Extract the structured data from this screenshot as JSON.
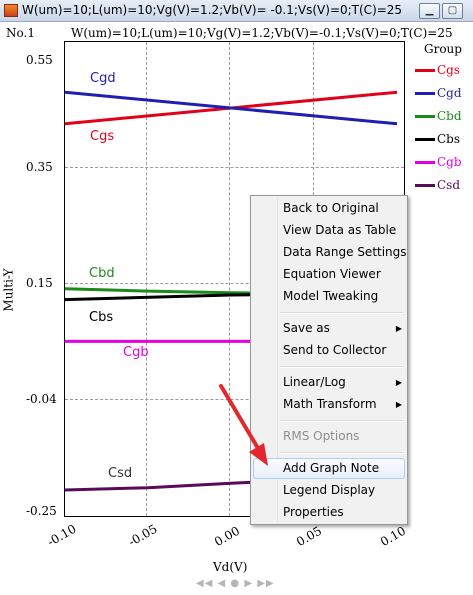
{
  "window": {
    "title": "W(um)=10;L(um)=10;Vg(V)=1.2;Vb(V)= -0.1;Vs(V)=0;T(C)=25",
    "minimize_symbol": "▁",
    "maximize_symbol": "▢",
    "close_symbol": "✕"
  },
  "graph": {
    "number": "No.1",
    "title": "W(um)=10;L(um)=10;Vg(V)=1.2;Vb(V)=-0.1;Vs(V)=0;T(C)=25",
    "ylabel": "Multi-Y",
    "xlabel": "Vd(V)",
    "pager": "◀◀ ◀ ● ▶ ▶▶"
  },
  "chart_data": {
    "type": "line",
    "x": [
      -0.1,
      0.1
    ],
    "xticks": [
      "-0.10",
      "-0.05",
      "0.00",
      "0.05",
      "0.10"
    ],
    "yticks": [
      "0.55",
      "0.35",
      "0.15",
      "-0.04",
      "-0.25"
    ],
    "xlim": [
      -0.1,
      0.1
    ],
    "ylim": [
      -0.25,
      0.55
    ],
    "grid": true,
    "legend_title": "Group",
    "legend_position": "right",
    "series": [
      {
        "name": "Cgs",
        "color": "#e3001b",
        "x": [
          -0.1,
          0.1
        ],
        "values": [
          0.437,
          0.493
        ]
      },
      {
        "name": "Cgd",
        "color": "#1f1fb0",
        "x": [
          -0.1,
          0.1
        ],
        "values": [
          0.493,
          0.437
        ]
      },
      {
        "name": "Cbd",
        "color": "#1a8a1a",
        "x": [
          -0.1,
          -0.05,
          0.0,
          0.03
        ],
        "values": [
          0.145,
          0.141,
          0.138,
          0.137
        ]
      },
      {
        "name": "Cbs",
        "color": "#000000",
        "x": [
          -0.1,
          0.0,
          0.03
        ],
        "values": [
          0.126,
          0.134,
          0.135
        ]
      },
      {
        "name": "Cgb",
        "color": "#e300e3",
        "x": [
          -0.1,
          0.03
        ],
        "values": [
          0.052,
          0.052
        ]
      },
      {
        "name": "Csd",
        "color": "#5a0a5a",
        "x": [
          -0.1,
          -0.05,
          0.0,
          0.03
        ],
        "values": [
          -0.211,
          -0.207,
          -0.199,
          -0.195
        ]
      }
    ]
  },
  "context_menu": {
    "items": [
      {
        "label": "Back to Original"
      },
      {
        "label": "View Data as Table"
      },
      {
        "label": "Data Range Settings"
      },
      {
        "label": "Equation Viewer"
      },
      {
        "label": "Model Tweaking"
      },
      {
        "label": "Save as",
        "submenu": "▶"
      },
      {
        "label": "Send to Collector"
      },
      {
        "label": "Linear/Log",
        "submenu": "▶"
      },
      {
        "label": "Math Transform",
        "submenu": "▶"
      },
      {
        "label": "RMS Options"
      },
      {
        "label": "Add Graph Note"
      },
      {
        "label": "Legend Display"
      },
      {
        "label": "Properties"
      }
    ]
  },
  "colors": {
    "annotation_arrow": "#e0282e",
    "menu_highlight_border": "#aecff7"
  }
}
